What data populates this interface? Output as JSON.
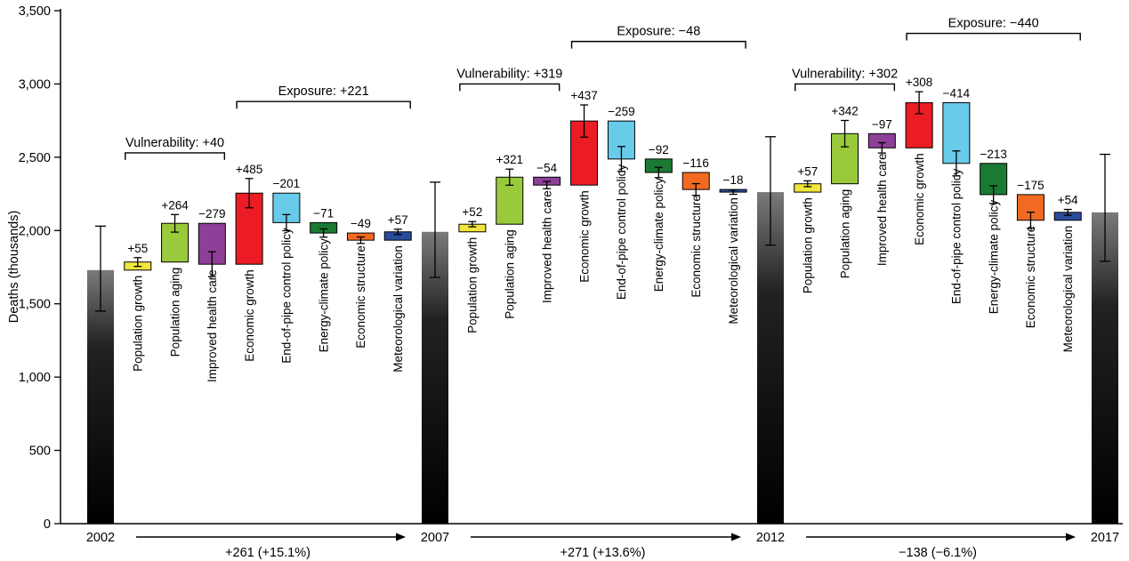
{
  "chart_data": {
    "type": "bar",
    "variant": "waterfall",
    "title": "",
    "ylabel": "Deaths (thousands)",
    "xlabel": "",
    "ylim": [
      0,
      3500
    ],
    "yticks": [
      0,
      500,
      1000,
      1500,
      2000,
      2500,
      3000,
      3500
    ],
    "ytick_labels": [
      "0",
      "500",
      "1,000",
      "1,500",
      "2,000",
      "2,500",
      "3,000",
      "3,500"
    ],
    "grid": false,
    "legend": false,
    "anchor_bar_color": "#000000",
    "segment_categories": [
      "Population growth",
      "Population aging",
      "Improved health care",
      "Economic growth",
      "End-of-pipe control policy",
      "Energy-climate policy",
      "Economic structure",
      "Meteorological variation"
    ],
    "segment_colors": [
      "#f2e63d",
      "#99ca3c",
      "#8e3f97",
      "#ec1c24",
      "#67cbe9",
      "#1a7a34",
      "#f26a21",
      "#2b4b9b"
    ],
    "anchor_bars": [
      {
        "year": "2002",
        "value": 1730,
        "err_low": 1450,
        "err_high": 2030
      },
      {
        "year": "2007",
        "value": 1991,
        "err_low": 1680,
        "err_high": 2330
      },
      {
        "year": "2012",
        "value": 2262,
        "err_low": 1900,
        "err_high": 2640
      },
      {
        "year": "2017",
        "value": 2124,
        "err_low": 1790,
        "err_high": 2520
      }
    ],
    "periods": [
      {
        "from_year": "2002",
        "to_year": "2007",
        "deltas": [
          55,
          264,
          -279,
          485,
          -201,
          -71,
          -49,
          57
        ],
        "delta_labels": [
          "+55",
          "+264",
          "−279",
          "+485",
          "−201",
          "−71",
          "−49",
          "+57"
        ],
        "errs": [
          30,
          60,
          85,
          100,
          55,
          28,
          22,
          18
        ],
        "vulnerability_label": "Vulnerability: +40",
        "exposure_label": "Exposure: +221",
        "bracket_levels": {
          "vulnerability": 2530,
          "exposure": 2880
        },
        "net_label": "+261 (+15.1%)"
      },
      {
        "from_year": "2007",
        "to_year": "2012",
        "deltas": [
          52,
          321,
          -54,
          437,
          -259,
          -92,
          -116,
          -18
        ],
        "delta_labels": [
          "+52",
          "+321",
          "−54",
          "+437",
          "−259",
          "−92",
          "−116",
          "−18"
        ],
        "errs": [
          18,
          55,
          25,
          110,
          85,
          35,
          40,
          15
        ],
        "vulnerability_label": "Vulnerability: +319",
        "exposure_label": "Exposure: −48",
        "bracket_levels": {
          "vulnerability": 3000,
          "exposure": 3290
        },
        "net_label": "+271 (+13.6%)"
      },
      {
        "from_year": "2012",
        "to_year": "2017",
        "deltas": [
          57,
          342,
          -97,
          308,
          -414,
          -213,
          -175,
          54
        ],
        "delta_labels": [
          "+57",
          "+342",
          "−97",
          "+308",
          "−414",
          "−213",
          "−175",
          "+54"
        ],
        "errs": [
          20,
          90,
          35,
          75,
          85,
          60,
          55,
          20
        ],
        "vulnerability_label": "Vulnerability: +302",
        "exposure_label": "Exposure: −440",
        "bracket_levels": {
          "vulnerability": 3000,
          "exposure": 3345
        },
        "net_label": "−138 (−6.1%)"
      }
    ]
  }
}
